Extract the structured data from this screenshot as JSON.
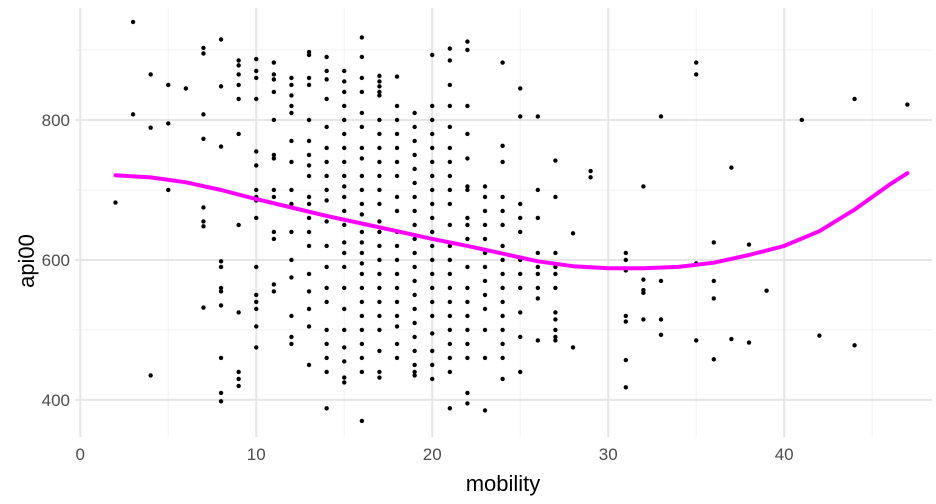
{
  "chart_data": {
    "type": "scatter",
    "title": "",
    "xlabel": "mobility",
    "ylabel": "api00",
    "xlim": [
      -0.3,
      48.4
    ],
    "ylim": [
      347,
      960
    ],
    "x_ticks": [
      0,
      10,
      20,
      30,
      40
    ],
    "y_ticks": [
      400,
      600,
      800
    ],
    "x_tick_labels": [
      "0",
      "10",
      "20",
      "30",
      "40"
    ],
    "y_tick_labels": [
      "400",
      "600",
      "800"
    ],
    "grid": true,
    "legend": "none",
    "point_color": "#000000",
    "smooth_color": "#ff00ff",
    "points": [
      [
        2,
        682
      ],
      [
        3,
        940
      ],
      [
        3,
        808
      ],
      [
        4,
        865
      ],
      [
        4,
        789
      ],
      [
        4,
        435
      ],
      [
        5,
        850
      ],
      [
        5,
        795
      ],
      [
        5,
        700
      ],
      [
        6,
        845
      ],
      [
        7,
        903
      ],
      [
        7,
        895
      ],
      [
        7,
        808
      ],
      [
        7,
        773
      ],
      [
        7,
        675
      ],
      [
        7,
        655
      ],
      [
        7,
        648
      ],
      [
        7,
        532
      ],
      [
        8,
        915
      ],
      [
        8,
        848
      ],
      [
        8,
        762
      ],
      [
        8,
        598
      ],
      [
        8,
        590
      ],
      [
        8,
        560
      ],
      [
        8,
        555
      ],
      [
        8,
        535
      ],
      [
        8,
        460
      ],
      [
        8,
        410
      ],
      [
        8,
        398
      ],
      [
        9,
        885
      ],
      [
        9,
        878
      ],
      [
        9,
        865
      ],
      [
        9,
        850
      ],
      [
        9,
        830
      ],
      [
        9,
        780
      ],
      [
        9,
        650
      ],
      [
        9,
        525
      ],
      [
        9,
        440
      ],
      [
        9,
        430
      ],
      [
        9,
        420
      ],
      [
        10,
        887
      ],
      [
        10,
        870
      ],
      [
        10,
        860
      ],
      [
        10,
        830
      ],
      [
        10,
        755
      ],
      [
        10,
        735
      ],
      [
        10,
        700
      ],
      [
        10,
        690
      ],
      [
        10,
        685
      ],
      [
        10,
        660
      ],
      [
        10,
        590
      ],
      [
        10,
        550
      ],
      [
        10,
        540
      ],
      [
        10,
        530
      ],
      [
        10,
        505
      ],
      [
        10,
        475
      ],
      [
        11,
        882
      ],
      [
        11,
        865
      ],
      [
        11,
        858
      ],
      [
        11,
        840
      ],
      [
        11,
        800
      ],
      [
        11,
        750
      ],
      [
        11,
        745
      ],
      [
        11,
        700
      ],
      [
        11,
        690
      ],
      [
        11,
        640
      ],
      [
        11,
        630
      ],
      [
        11,
        565
      ],
      [
        11,
        555
      ],
      [
        12,
        860
      ],
      [
        12,
        850
      ],
      [
        12,
        835
      ],
      [
        12,
        820
      ],
      [
        12,
        810
      ],
      [
        12,
        770
      ],
      [
        12,
        740
      ],
      [
        12,
        700
      ],
      [
        12,
        680
      ],
      [
        12,
        640
      ],
      [
        12,
        600
      ],
      [
        12,
        575
      ],
      [
        12,
        520
      ],
      [
        12,
        490
      ],
      [
        12,
        480
      ],
      [
        13,
        897
      ],
      [
        13,
        893
      ],
      [
        13,
        860
      ],
      [
        13,
        850
      ],
      [
        13,
        800
      ],
      [
        13,
        770
      ],
      [
        13,
        750
      ],
      [
        13,
        735
      ],
      [
        13,
        720
      ],
      [
        13,
        690
      ],
      [
        13,
        680
      ],
      [
        13,
        660
      ],
      [
        13,
        640
      ],
      [
        13,
        620
      ],
      [
        13,
        580
      ],
      [
        13,
        555
      ],
      [
        13,
        530
      ],
      [
        13,
        505
      ],
      [
        13,
        450
      ],
      [
        14,
        890
      ],
      [
        14,
        870
      ],
      [
        14,
        858
      ],
      [
        14,
        830
      ],
      [
        14,
        790
      ],
      [
        14,
        760
      ],
      [
        14,
        740
      ],
      [
        14,
        720
      ],
      [
        14,
        700
      ],
      [
        14,
        685
      ],
      [
        14,
        655
      ],
      [
        14,
        620
      ],
      [
        14,
        590
      ],
      [
        14,
        560
      ],
      [
        14,
        540
      ],
      [
        14,
        500
      ],
      [
        14,
        480
      ],
      [
        14,
        460
      ],
      [
        14,
        440
      ],
      [
        14,
        388
      ],
      [
        15,
        870
      ],
      [
        15,
        855
      ],
      [
        15,
        840
      ],
      [
        15,
        820
      ],
      [
        15,
        800
      ],
      [
        15,
        780
      ],
      [
        15,
        760
      ],
      [
        15,
        740
      ],
      [
        15,
        720
      ],
      [
        15,
        705
      ],
      [
        15,
        690
      ],
      [
        15,
        670
      ],
      [
        15,
        650
      ],
      [
        15,
        625
      ],
      [
        15,
        610
      ],
      [
        15,
        590
      ],
      [
        15,
        560
      ],
      [
        15,
        530
      ],
      [
        15,
        500
      ],
      [
        15,
        475
      ],
      [
        15,
        455
      ],
      [
        15,
        432
      ],
      [
        15,
        425
      ],
      [
        16,
        918
      ],
      [
        16,
        890
      ],
      [
        16,
        860
      ],
      [
        16,
        840
      ],
      [
        16,
        810
      ],
      [
        16,
        790
      ],
      [
        16,
        760
      ],
      [
        16,
        745
      ],
      [
        16,
        720
      ],
      [
        16,
        700
      ],
      [
        16,
        680
      ],
      [
        16,
        665
      ],
      [
        16,
        640
      ],
      [
        16,
        625
      ],
      [
        16,
        610
      ],
      [
        16,
        595
      ],
      [
        16,
        580
      ],
      [
        16,
        560
      ],
      [
        16,
        540
      ],
      [
        16,
        520
      ],
      [
        16,
        500
      ],
      [
        16,
        480
      ],
      [
        16,
        460
      ],
      [
        16,
        440
      ],
      [
        16,
        370
      ],
      [
        17,
        863
      ],
      [
        17,
        855
      ],
      [
        17,
        848
      ],
      [
        17,
        840
      ],
      [
        17,
        835
      ],
      [
        17,
        800
      ],
      [
        17,
        780
      ],
      [
        17,
        760
      ],
      [
        17,
        740
      ],
      [
        17,
        720
      ],
      [
        17,
        700
      ],
      [
        17,
        680
      ],
      [
        17,
        655
      ],
      [
        17,
        640
      ],
      [
        17,
        620
      ],
      [
        17,
        600
      ],
      [
        17,
        580
      ],
      [
        17,
        560
      ],
      [
        17,
        540
      ],
      [
        17,
        520
      ],
      [
        17,
        500
      ],
      [
        17,
        470
      ],
      [
        17,
        440
      ],
      [
        17,
        432
      ],
      [
        18,
        862
      ],
      [
        18,
        820
      ],
      [
        18,
        800
      ],
      [
        18,
        780
      ],
      [
        18,
        760
      ],
      [
        18,
        740
      ],
      [
        18,
        720
      ],
      [
        18,
        690
      ],
      [
        18,
        670
      ],
      [
        18,
        640
      ],
      [
        18,
        620
      ],
      [
        18,
        600
      ],
      [
        18,
        580
      ],
      [
        18,
        560
      ],
      [
        18,
        540
      ],
      [
        18,
        520
      ],
      [
        18,
        505
      ],
      [
        18,
        480
      ],
      [
        18,
        460
      ],
      [
        19,
        810
      ],
      [
        19,
        790
      ],
      [
        19,
        770
      ],
      [
        19,
        750
      ],
      [
        19,
        730
      ],
      [
        19,
        710
      ],
      [
        19,
        690
      ],
      [
        19,
        670
      ],
      [
        19,
        650
      ],
      [
        19,
        630
      ],
      [
        19,
        610
      ],
      [
        19,
        590
      ],
      [
        19,
        570
      ],
      [
        19,
        550
      ],
      [
        19,
        530
      ],
      [
        19,
        510
      ],
      [
        19,
        490
      ],
      [
        19,
        470
      ],
      [
        19,
        450
      ],
      [
        19,
        440
      ],
      [
        19,
        435
      ],
      [
        20,
        893
      ],
      [
        20,
        820
      ],
      [
        20,
        800
      ],
      [
        20,
        780
      ],
      [
        20,
        760
      ],
      [
        20,
        740
      ],
      [
        20,
        720
      ],
      [
        20,
        700
      ],
      [
        20,
        680
      ],
      [
        20,
        660
      ],
      [
        20,
        640
      ],
      [
        20,
        620
      ],
      [
        20,
        600
      ],
      [
        20,
        580
      ],
      [
        20,
        560
      ],
      [
        20,
        540
      ],
      [
        20,
        520
      ],
      [
        20,
        495
      ],
      [
        20,
        470
      ],
      [
        20,
        450
      ],
      [
        20,
        430
      ],
      [
        21,
        902
      ],
      [
        21,
        885
      ],
      [
        21,
        850
      ],
      [
        21,
        820
      ],
      [
        21,
        790
      ],
      [
        21,
        760
      ],
      [
        21,
        740
      ],
      [
        21,
        720
      ],
      [
        21,
        700
      ],
      [
        21,
        680
      ],
      [
        21,
        650
      ],
      [
        21,
        620
      ],
      [
        21,
        600
      ],
      [
        21,
        580
      ],
      [
        21,
        560
      ],
      [
        21,
        540
      ],
      [
        21,
        520
      ],
      [
        21,
        500
      ],
      [
        21,
        480
      ],
      [
        21,
        460
      ],
      [
        21,
        440
      ],
      [
        21,
        388
      ],
      [
        22,
        912
      ],
      [
        22,
        900
      ],
      [
        22,
        820
      ],
      [
        22,
        780
      ],
      [
        22,
        745
      ],
      [
        22,
        705
      ],
      [
        22,
        700
      ],
      [
        22,
        660
      ],
      [
        22,
        650
      ],
      [
        22,
        630
      ],
      [
        22,
        590
      ],
      [
        22,
        560
      ],
      [
        22,
        540
      ],
      [
        22,
        520
      ],
      [
        22,
        500
      ],
      [
        22,
        480
      ],
      [
        22,
        460
      ],
      [
        22,
        410
      ],
      [
        22,
        395
      ],
      [
        23,
        705
      ],
      [
        23,
        690
      ],
      [
        23,
        670
      ],
      [
        23,
        650
      ],
      [
        23,
        630
      ],
      [
        23,
        610
      ],
      [
        23,
        590
      ],
      [
        23,
        570
      ],
      [
        23,
        550
      ],
      [
        23,
        530
      ],
      [
        23,
        500
      ],
      [
        23,
        460
      ],
      [
        23,
        385
      ],
      [
        24,
        882
      ],
      [
        24,
        763
      ],
      [
        24,
        740
      ],
      [
        24,
        690
      ],
      [
        24,
        670
      ],
      [
        24,
        650
      ],
      [
        24,
        620
      ],
      [
        24,
        600
      ],
      [
        24,
        580
      ],
      [
        24,
        560
      ],
      [
        24,
        540
      ],
      [
        24,
        520
      ],
      [
        24,
        500
      ],
      [
        24,
        480
      ],
      [
        24,
        460
      ],
      [
        24,
        430
      ],
      [
        25,
        845
      ],
      [
        25,
        805
      ],
      [
        25,
        680
      ],
      [
        25,
        660
      ],
      [
        25,
        640
      ],
      [
        25,
        600
      ],
      [
        25,
        580
      ],
      [
        25,
        560
      ],
      [
        25,
        525
      ],
      [
        25,
        490
      ],
      [
        25,
        440
      ],
      [
        26,
        805
      ],
      [
        26,
        700
      ],
      [
        26,
        660
      ],
      [
        26,
        610
      ],
      [
        26,
        590
      ],
      [
        26,
        580
      ],
      [
        26,
        560
      ],
      [
        26,
        545
      ],
      [
        26,
        485
      ],
      [
        27,
        742
      ],
      [
        27,
        690
      ],
      [
        27,
        610
      ],
      [
        27,
        590
      ],
      [
        27,
        580
      ],
      [
        27,
        560
      ],
      [
        27,
        525
      ],
      [
        27,
        515
      ],
      [
        27,
        500
      ],
      [
        27,
        490
      ],
      [
        27,
        485
      ],
      [
        28,
        638
      ],
      [
        28,
        475
      ],
      [
        29,
        727
      ],
      [
        29,
        718
      ],
      [
        31,
        610
      ],
      [
        31,
        600
      ],
      [
        31,
        585
      ],
      [
        31,
        520
      ],
      [
        31,
        512
      ],
      [
        31,
        457
      ],
      [
        31,
        418
      ],
      [
        32,
        705
      ],
      [
        32,
        572
      ],
      [
        32,
        557
      ],
      [
        32,
        553
      ],
      [
        32,
        515
      ],
      [
        33,
        805
      ],
      [
        33,
        570
      ],
      [
        33,
        515
      ],
      [
        33,
        493
      ],
      [
        35,
        882
      ],
      [
        35,
        865
      ],
      [
        35,
        595
      ],
      [
        35,
        485
      ],
      [
        36,
        625
      ],
      [
        36,
        570
      ],
      [
        36,
        545
      ],
      [
        36,
        458
      ],
      [
        37,
        732
      ],
      [
        37,
        487
      ],
      [
        38,
        622
      ],
      [
        38,
        482
      ],
      [
        39,
        556
      ],
      [
        41,
        800
      ],
      [
        42,
        492
      ],
      [
        44,
        830
      ],
      [
        44,
        478
      ],
      [
        47,
        822
      ]
    ],
    "smooth": {
      "x": [
        2,
        4,
        6,
        8,
        10,
        12,
        14,
        16,
        18,
        20,
        22,
        24,
        26,
        28,
        30,
        32,
        34,
        36,
        38,
        40,
        42,
        44,
        46,
        47
      ],
      "y": [
        721,
        718,
        711,
        700,
        687,
        675,
        663,
        652,
        641,
        630,
        620,
        609,
        598,
        591,
        588,
        588,
        590,
        596,
        607,
        620,
        641,
        672,
        708,
        724
      ]
    }
  }
}
